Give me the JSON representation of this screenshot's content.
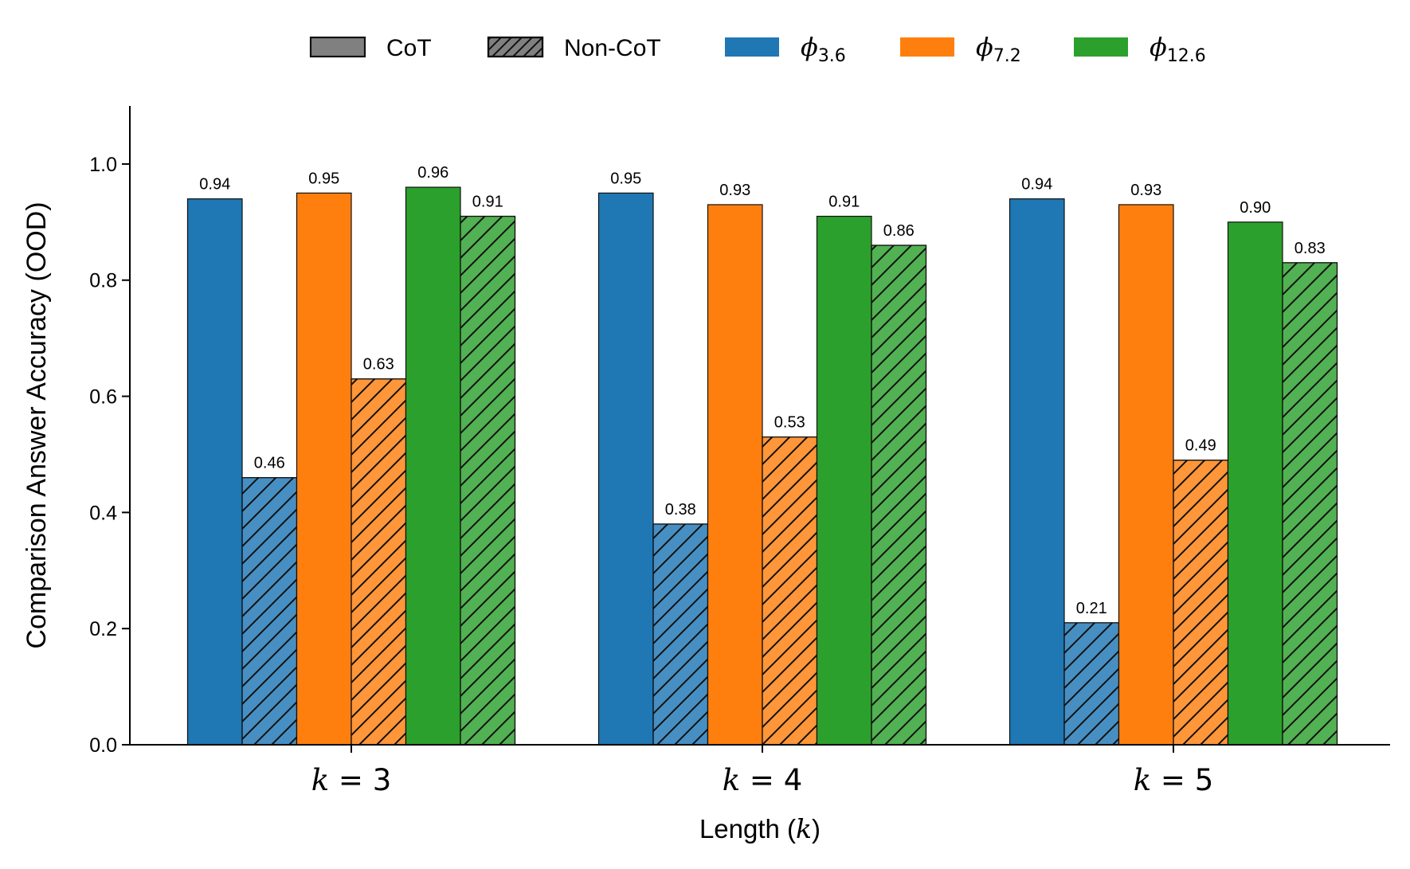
{
  "chart_data": {
    "type": "bar",
    "xlabel": "Length (k)",
    "ylabel": "Comparison Answer Accuracy (OOD)",
    "ylim": [
      0,
      1.1
    ],
    "yticks": [
      "0.0",
      "0.2",
      "0.4",
      "0.6",
      "0.8",
      "1.0"
    ],
    "categories": [
      "k = 3",
      "k = 4",
      "k = 5"
    ],
    "series": [
      {
        "name": "φ3.6 CoT",
        "model": "3.6",
        "style": "CoT",
        "color": "#1f77b4",
        "values": [
          0.94,
          0.95,
          0.94
        ],
        "labels": [
          "0.94",
          "0.95",
          "0.94"
        ]
      },
      {
        "name": "φ3.6 Non-CoT",
        "model": "3.6",
        "style": "Non-CoT",
        "color": "#1f77b4",
        "values": [
          0.46,
          0.38,
          0.21
        ],
        "labels": [
          "0.46",
          "0.38",
          "0.21"
        ]
      },
      {
        "name": "φ7.2 CoT",
        "model": "7.2",
        "style": "CoT",
        "color": "#ff7f0e",
        "values": [
          0.95,
          0.93,
          0.93
        ],
        "labels": [
          "0.95",
          "0.93",
          "0.93"
        ]
      },
      {
        "name": "φ7.2 Non-CoT",
        "model": "7.2",
        "style": "Non-CoT",
        "color": "#ff7f0e",
        "values": [
          0.63,
          0.53,
          0.49
        ],
        "labels": [
          "0.63",
          "0.53",
          "0.49"
        ]
      },
      {
        "name": "φ12.6 CoT",
        "model": "12.6",
        "style": "CoT",
        "color": "#2ca02c",
        "values": [
          0.96,
          0.91,
          0.9
        ],
        "labels": [
          "0.96",
          "0.91",
          "0.90"
        ]
      },
      {
        "name": "φ12.6 Non-CoT",
        "model": "12.6",
        "style": "Non-CoT",
        "color": "#2ca02c",
        "values": [
          0.91,
          0.86,
          0.83
        ],
        "labels": [
          "0.91",
          "0.86",
          "0.83"
        ]
      }
    ],
    "legend": {
      "placement": "top-center",
      "entries": [
        {
          "label": "CoT",
          "kind": "solid",
          "color": "#808080"
        },
        {
          "label": "Non-CoT",
          "kind": "hatched",
          "color": "#808080"
        },
        {
          "label": "ϕ",
          "subscript": "3.6",
          "kind": "solid",
          "color": "#1f77b4"
        },
        {
          "label": "ϕ",
          "subscript": "7.2",
          "kind": "solid",
          "color": "#ff7f0e"
        },
        {
          "label": "ϕ",
          "subscript": "12.6",
          "kind": "solid",
          "color": "#2ca02c"
        }
      ]
    },
    "grid": false
  }
}
